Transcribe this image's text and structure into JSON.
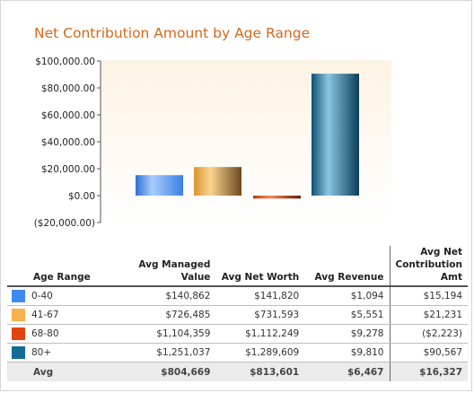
{
  "chart_data": {
    "type": "bar",
    "title": "Net Contribution Amount by Age Range",
    "categories": [
      "0-40",
      "41-67",
      "68-80",
      "80+"
    ],
    "values": [
      15194,
      21231,
      -2223,
      90567
    ],
    "colors": [
      "#4a8ff0",
      "#f7b247",
      "#e04a12",
      "#176b94"
    ],
    "ylim": [
      -20000,
      100000
    ],
    "yticks": [
      "$100,000.00",
      "$80,000.00",
      "$60,000.00",
      "$40,000.00",
      "$20,000.00",
      "$0.00",
      "($20,000.00)"
    ],
    "ytick_values": [
      100000,
      80000,
      60000,
      40000,
      20000,
      0,
      -20000
    ],
    "grid": false,
    "legend": "none"
  },
  "table": {
    "headers": {
      "age_range": "Age Range",
      "managed_line1": "Avg Managed",
      "managed_line2": "Value",
      "net_worth": "Avg Net Worth",
      "revenue": "Avg Revenue",
      "net_contrib_line1": "Avg Net",
      "net_contrib_line2": "Contribution Amt"
    },
    "rows": [
      {
        "label": "0-40",
        "color": "#3d8bef",
        "managed": "$140,862",
        "net_worth": "$141,820",
        "revenue": "$1,094",
        "net_contrib": "$15,194"
      },
      {
        "label": "41-67",
        "color": "#f6b24d",
        "managed": "$726,485",
        "net_worth": "$731,593",
        "revenue": "$5,551",
        "net_contrib": "$21,231"
      },
      {
        "label": "68-80",
        "color": "#e0440e",
        "managed": "$1,104,359",
        "net_worth": "$1,112,249",
        "revenue": "$9,278",
        "net_contrib": "($2,223)"
      },
      {
        "label": "80+",
        "color": "#156c96",
        "managed": "$1,251,037",
        "net_worth": "$1,289,609",
        "revenue": "$9,810",
        "net_contrib": "$90,567"
      }
    ],
    "avg": {
      "label": "Avg",
      "managed": "$804,669",
      "net_worth": "$813,601",
      "revenue": "$6,467",
      "net_contrib": "$16,327"
    }
  }
}
